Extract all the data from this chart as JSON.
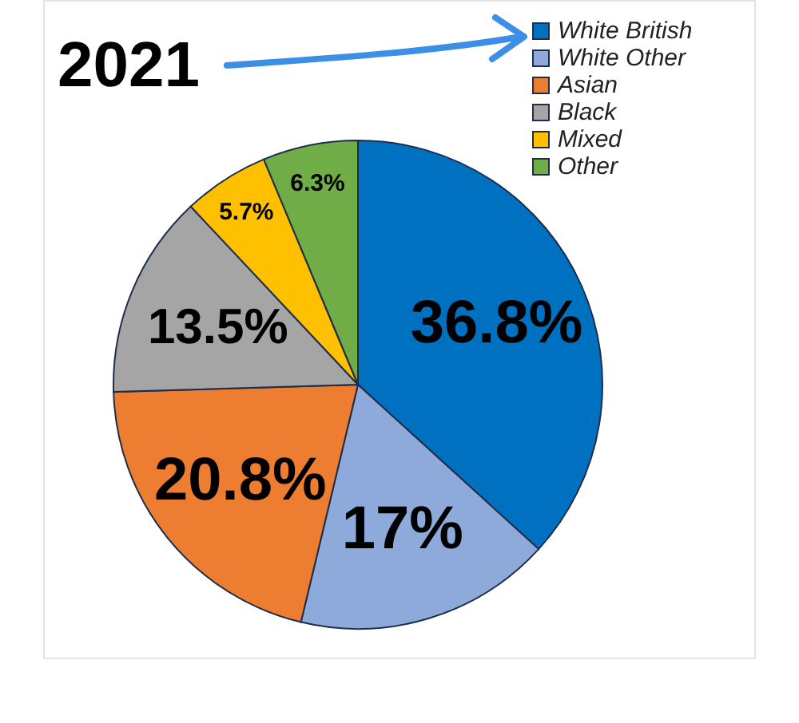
{
  "chart_data": {
    "type": "pie",
    "title": "2021",
    "categories": [
      "White British",
      "White Other",
      "Asian",
      "Black",
      "Mixed",
      "Other"
    ],
    "values": [
      36.8,
      17,
      20.8,
      13.5,
      5.7,
      6.3
    ],
    "value_labels": [
      "36.8%",
      "17%",
      "20.8%",
      "13.5%",
      "5.7%",
      "6.3%"
    ],
    "colors": [
      "#0070c0",
      "#8eaadb",
      "#ed7d31",
      "#a5a5a5",
      "#ffc000",
      "#70ad47"
    ],
    "legend": "top right"
  }
}
